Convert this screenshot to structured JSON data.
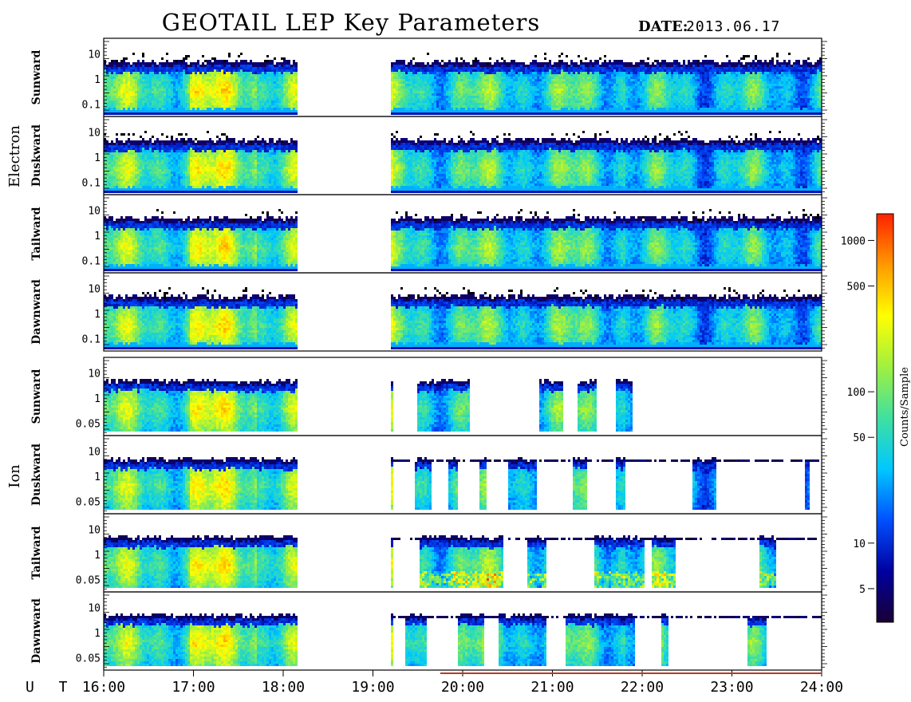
{
  "title": "GEOTAIL LEP Key Parameters",
  "date_label": "DATE:",
  "date_value": "2013.06.17",
  "colors": {
    "colormap": [
      "#1a0033",
      "#0000a0",
      "#0050ff",
      "#00c8ff",
      "#40e0a0",
      "#a0f040",
      "#ffff00",
      "#ff9900",
      "#ff2000"
    ],
    "fill_bar": "#b43c28"
  },
  "chart_data": {
    "type": "heatmap",
    "xlabel": "U T",
    "x_ticks": [
      "16:00",
      "17:00",
      "18:00",
      "19:00",
      "20:00",
      "21:00",
      "22:00",
      "23:00",
      "24:00"
    ],
    "xlim": [
      16.0,
      24.0
    ],
    "data_gap": [
      18.15,
      19.2
    ],
    "groups": [
      {
        "name": "Electron",
        "panels": [
          "Sunward",
          "Duskward",
          "Tailward",
          "Dawnward"
        ],
        "y_ticks": [
          "10",
          "1",
          "0.1"
        ]
      },
      {
        "name": "Ion",
        "panels": [
          "Sunward",
          "Duskward",
          "Tailward",
          "Dawnward"
        ],
        "y_ticks": [
          "10",
          "1",
          "0.05"
        ]
      }
    ],
    "colorbar": {
      "label": "Counts/Sample",
      "scale": "log",
      "range": [
        3,
        1500
      ],
      "ticks": [
        "1000",
        "500",
        "100",
        "50",
        "10",
        "5"
      ]
    }
  }
}
